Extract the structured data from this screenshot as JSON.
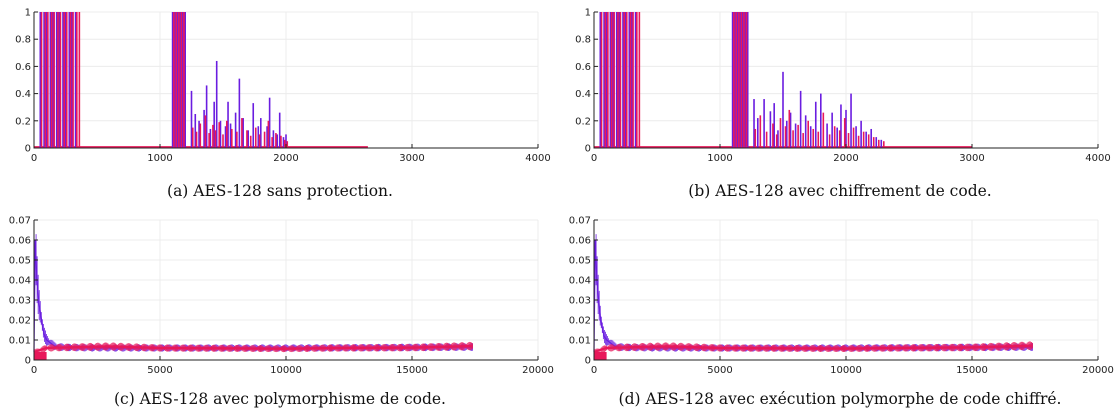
{
  "figures": [
    {
      "caption": "(a) AES-128 sans protection.",
      "chart_data": {
        "type": "bar",
        "xlim": [
          0,
          4000
        ],
        "ylim": [
          0,
          1
        ],
        "xticks": [
          0,
          1000,
          2000,
          3000,
          4000
        ],
        "yticks": [
          0,
          0.2,
          0.4,
          0.6,
          0.8,
          1
        ],
        "ytick_labels": [
          "0",
          "0.2",
          "0.4",
          "0.6",
          "0.8",
          "1"
        ],
        "grid": true,
        "series": [
          {
            "color": "#6a1de0",
            "x": [
              50,
              80,
              100,
              130,
              150,
              180,
              200,
              230,
              250,
              280,
              300,
              330,
              1100,
              1120,
              1140,
              1160,
              1180,
              1200,
              1250,
              1280,
              1310,
              1350,
              1370,
              1400,
              1430,
              1450,
              1480,
              1520,
              1540,
              1560,
              1600,
              1630,
              1660,
              1700,
              1740,
              1780,
              1800,
              1850,
              1870,
              1900,
              1930,
              1950,
              1980,
              2000
            ],
            "values": [
              1,
              1,
              1,
              1,
              1,
              1,
              1,
              1,
              1,
              1,
              1,
              1,
              1,
              1,
              1,
              1,
              1,
              1,
              0.42,
              0.25,
              0.2,
              0.28,
              0.46,
              0.14,
              0.34,
              0.64,
              0.2,
              0.16,
              0.34,
              0.18,
              0.26,
              0.51,
              0.22,
              0.13,
              0.33,
              0.16,
              0.22,
              0.16,
              0.37,
              0.13,
              0.1,
              0.26,
              0.08,
              0.1
            ]
          },
          {
            "color": "#e8185a",
            "x": [
              60,
              90,
              110,
              140,
              160,
              190,
              210,
              240,
              260,
              290,
              310,
              340,
              360,
              1110,
              1130,
              1150,
              1170,
              1190,
              1260,
              1290,
              1320,
              1360,
              1390,
              1420,
              1440,
              1470,
              1500,
              1530,
              1570,
              1610,
              1650,
              1690,
              1720,
              1760,
              1790,
              1830,
              1860,
              1890,
              1920,
              1960,
              1990,
              2010
            ],
            "values": [
              1,
              1,
              1,
              1,
              1,
              1,
              1,
              1,
              1,
              1,
              1,
              1,
              1,
              1,
              1,
              1,
              1,
              1,
              0.15,
              0.12,
              0.18,
              0.24,
              0.11,
              0.17,
              0.13,
              0.19,
              0.1,
              0.2,
              0.14,
              0.12,
              0.22,
              0.13,
              0.09,
              0.15,
              0.1,
              0.12,
              0.2,
              0.08,
              0.11,
              0.09,
              0.06,
              0.05
            ]
          }
        ],
        "baseline": {
          "color": "#e8185a",
          "x_range": [
            0,
            2650
          ],
          "value": 0.008
        }
      }
    },
    {
      "caption": "(b) AES-128 avec chiffrement de code.",
      "chart_data": {
        "type": "bar",
        "xlim": [
          0,
          4000
        ],
        "ylim": [
          0,
          1
        ],
        "xticks": [
          0,
          1000,
          2000,
          3000,
          4000
        ],
        "yticks": [
          0,
          0.2,
          0.4,
          0.6,
          0.8,
          1
        ],
        "ytick_labels": [
          "0",
          "0.2",
          "0.4",
          "0.6",
          "0.8",
          "1"
        ],
        "grid": true,
        "series": [
          {
            "color": "#6a1de0",
            "x": [
              50,
              80,
              100,
              130,
              150,
              180,
              200,
              230,
              250,
              280,
              300,
              330,
              1100,
              1120,
              1140,
              1160,
              1180,
              1200,
              1220,
              1270,
              1300,
              1350,
              1400,
              1430,
              1460,
              1500,
              1530,
              1560,
              1600,
              1640,
              1680,
              1720,
              1760,
              1800,
              1850,
              1890,
              1930,
              1960,
              2000,
              2040,
              2080,
              2120,
              2160,
              2200,
              2240,
              2280
            ],
            "values": [
              1,
              1,
              1,
              1,
              1,
              1,
              1,
              1,
              1,
              1,
              1,
              1,
              1,
              1,
              1,
              1,
              1,
              1,
              1,
              0.36,
              0.22,
              0.36,
              0.27,
              0.33,
              0.13,
              0.56,
              0.2,
              0.26,
              0.18,
              0.42,
              0.24,
              0.16,
              0.34,
              0.4,
              0.18,
              0.26,
              0.15,
              0.32,
              0.28,
              0.4,
              0.16,
              0.2,
              0.12,
              0.14,
              0.08,
              0.06
            ]
          },
          {
            "color": "#e8185a",
            "x": [
              60,
              90,
              110,
              140,
              160,
              190,
              210,
              240,
              260,
              290,
              310,
              340,
              360,
              1110,
              1130,
              1150,
              1170,
              1190,
              1210,
              1280,
              1320,
              1370,
              1420,
              1450,
              1480,
              1520,
              1550,
              1580,
              1620,
              1660,
              1700,
              1740,
              1780,
              1820,
              1870,
              1910,
              1950,
              1990,
              2020,
              2060,
              2100,
              2140,
              2180,
              2220,
              2260,
              2300
            ],
            "values": [
              1,
              1,
              1,
              1,
              1,
              1,
              1,
              1,
              1,
              1,
              1,
              1,
              1,
              1,
              1,
              1,
              1,
              1,
              1,
              0.14,
              0.24,
              0.12,
              0.18,
              0.1,
              0.22,
              0.16,
              0.28,
              0.13,
              0.17,
              0.11,
              0.2,
              0.14,
              0.12,
              0.26,
              0.1,
              0.16,
              0.13,
              0.22,
              0.11,
              0.15,
              0.09,
              0.12,
              0.1,
              0.08,
              0.06,
              0.05
            ]
          }
        ],
        "baseline": {
          "color": "#e8185a",
          "x_range": [
            0,
            3000
          ],
          "value": 0.008
        }
      }
    },
    {
      "caption": "(c) AES-128 avec polymorphisme de code.",
      "chart_data": {
        "type": "line",
        "xlim": [
          0,
          20000
        ],
        "ylim": [
          0,
          0.07
        ],
        "xticks": [
          0,
          5000,
          10000,
          15000,
          20000
        ],
        "yticks": [
          0,
          0.01,
          0.02,
          0.03,
          0.04,
          0.05,
          0.06,
          0.07
        ],
        "ytick_labels": [
          "0",
          "0.01",
          "0.02",
          "0.03",
          "0.04",
          "0.05",
          "0.06",
          "0.07"
        ],
        "grid": true,
        "series": [
          {
            "color": "#6a1de0",
            "x": [
              0,
              50,
              100,
              150,
              200,
              250,
              300,
              350,
              400,
              500,
              600,
              700,
              800,
              1000,
              1500,
              3000,
              6000,
              10000,
              14000,
              17400
            ],
            "values": [
              0.004,
              0.06,
              0.045,
              0.035,
              0.028,
              0.024,
              0.02,
              0.016,
              0.013,
              0.01,
              0.009,
              0.008,
              0.007,
              0.0065,
              0.0062,
              0.006,
              0.006,
              0.006,
              0.0062,
              0.0065
            ]
          },
          {
            "color": "#e8185a",
            "x": [
              0,
              500,
              1000,
              2000,
              3000,
              5000,
              8000,
              10000,
              12000,
              15000,
              17400
            ],
            "values": [
              0.004,
              0.006,
              0.0062,
              0.0065,
              0.0068,
              0.006,
              0.0058,
              0.0056,
              0.006,
              0.0062,
              0.007
            ]
          }
        ],
        "block": {
          "color": "#e8185a",
          "x_range": [
            0,
            500
          ],
          "y_range": [
            0,
            0.004
          ]
        }
      }
    },
    {
      "caption": "(d) AES-128 avec exécution polymorphe de code chiffré.",
      "chart_data": {
        "type": "line",
        "xlim": [
          0,
          20000
        ],
        "ylim": [
          0,
          0.07
        ],
        "xticks": [
          0,
          5000,
          10000,
          15000,
          20000
        ],
        "yticks": [
          0,
          0.01,
          0.02,
          0.03,
          0.04,
          0.05,
          0.06,
          0.07
        ],
        "ytick_labels": [
          "0",
          "0.01",
          "0.02",
          "0.03",
          "0.04",
          "0.05",
          "0.06",
          "0.07"
        ],
        "grid": true,
        "series": [
          {
            "color": "#6a1de0",
            "x": [
              0,
              50,
              100,
              150,
              200,
              250,
              300,
              350,
              400,
              500,
              600,
              700,
              800,
              1000,
              1500,
              3000,
              6000,
              10000,
              14000,
              17400
            ],
            "values": [
              0.004,
              0.06,
              0.045,
              0.035,
              0.028,
              0.022,
              0.018,
              0.015,
              0.012,
              0.01,
              0.009,
              0.008,
              0.007,
              0.0065,
              0.0062,
              0.006,
              0.006,
              0.006,
              0.0062,
              0.0065
            ]
          },
          {
            "color": "#e8185a",
            "x": [
              0,
              500,
              1000,
              2000,
              3000,
              5000,
              8000,
              10000,
              12000,
              15000,
              17400
            ],
            "values": [
              0.004,
              0.006,
              0.0062,
              0.0066,
              0.0068,
              0.006,
              0.0058,
              0.0057,
              0.006,
              0.0063,
              0.0072
            ]
          }
        ],
        "block": {
          "color": "#e8185a",
          "x_range": [
            0,
            500
          ],
          "y_range": [
            0,
            0.004
          ]
        }
      }
    }
  ]
}
